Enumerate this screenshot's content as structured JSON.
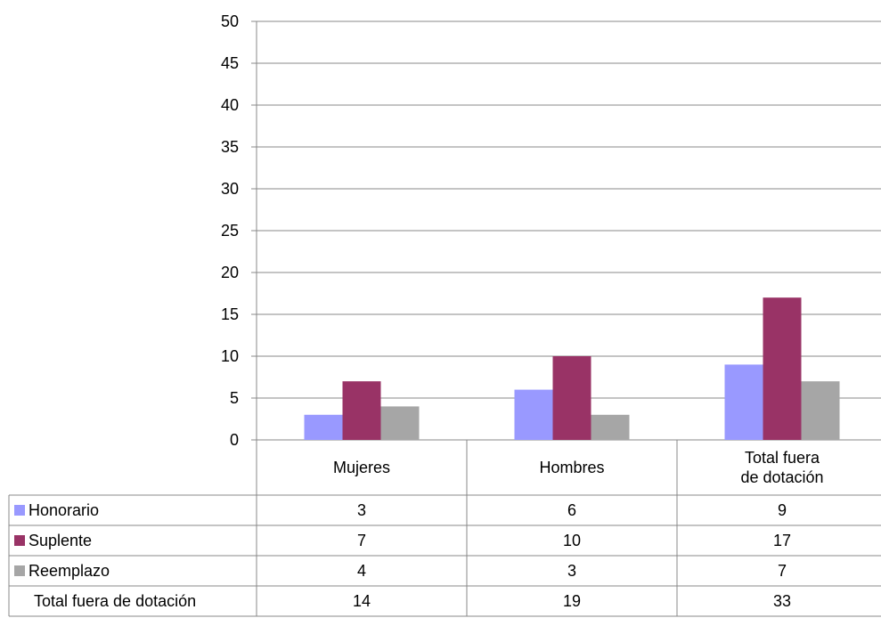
{
  "chart_data": {
    "type": "bar",
    "categories": [
      [
        "Mujeres"
      ],
      [
        "Hombres"
      ],
      [
        "Total fuera",
        "de dotación"
      ]
    ],
    "series": [
      {
        "name": "Honorario",
        "values": [
          3,
          6,
          9
        ],
        "color": "#9999FF"
      },
      {
        "name": "Suplente",
        "values": [
          7,
          10,
          17
        ],
        "color": "#993366"
      },
      {
        "name": "Reemplazo",
        "values": [
          4,
          3,
          7
        ],
        "color": "#A6A6A6"
      }
    ],
    "total_row": {
      "label": "Total fuera de dotación",
      "values": [
        14,
        19,
        33
      ]
    },
    "ylim": [
      0,
      50
    ],
    "yticks": [
      0,
      5,
      10,
      15,
      20,
      25,
      30,
      35,
      40,
      45,
      50
    ],
    "grid": true,
    "legend": "data-table-left",
    "title": "",
    "xlabel": "",
    "ylabel": ""
  }
}
